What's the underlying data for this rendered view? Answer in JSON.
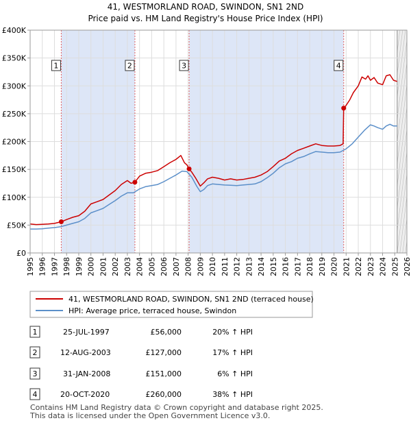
{
  "chart_data": {
    "type": "line",
    "title": "41, WESTMORLAND ROAD, SWINDON, SN1 2ND",
    "subtitle": "Price paid vs. HM Land Registry's House Price Index (HPI)",
    "xlim": [
      1995,
      2026
    ],
    "ylim": [
      0,
      400000
    ],
    "x_ticks": [
      "1995",
      "1996",
      "1997",
      "1998",
      "1999",
      "2000",
      "2001",
      "2002",
      "2003",
      "2004",
      "2005",
      "2006",
      "2007",
      "2008",
      "2009",
      "2010",
      "2011",
      "2012",
      "2013",
      "2014",
      "2015",
      "2016",
      "2017",
      "2018",
      "2019",
      "2020",
      "2021",
      "2022",
      "2023",
      "2024",
      "2025",
      "2026"
    ],
    "y_ticks": [
      {
        "value": 0,
        "label": "£0"
      },
      {
        "value": 50000,
        "label": "£50K"
      },
      {
        "value": 100000,
        "label": "£100K"
      },
      {
        "value": 150000,
        "label": "£150K"
      },
      {
        "value": 200000,
        "label": "£200K"
      },
      {
        "value": 250000,
        "label": "£250K"
      },
      {
        "value": 300000,
        "label": "£300K"
      },
      {
        "value": 350000,
        "label": "£350K"
      },
      {
        "value": 400000,
        "label": "£400K"
      }
    ],
    "grid": true,
    "series": [
      {
        "name": "41, WESTMORLAND ROAD, SWINDON, SN1 2ND (terraced house)",
        "color": "#cc0000",
        "x": [
          1995.0,
          1995.5,
          1996.0,
          1996.5,
          1997.0,
          1997.56,
          1998.0,
          1998.5,
          1999.0,
          1999.5,
          2000.0,
          2000.5,
          2001.0,
          2001.5,
          2002.0,
          2002.5,
          2003.0,
          2003.3,
          2003.62,
          2004.0,
          2004.5,
          2005.0,
          2005.5,
          2006.0,
          2006.5,
          2007.0,
          2007.4,
          2007.7,
          2007.9,
          2008.08,
          2008.3,
          2008.6,
          2009.0,
          2009.3,
          2009.6,
          2010.0,
          2010.5,
          2011.0,
          2011.5,
          2012.0,
          2012.5,
          2013.0,
          2013.5,
          2014.0,
          2014.5,
          2015.0,
          2015.5,
          2016.0,
          2016.5,
          2017.0,
          2017.5,
          2018.0,
          2018.5,
          2019.0,
          2019.5,
          2020.0,
          2020.5,
          2020.75,
          2020.8,
          2021.0,
          2021.3,
          2021.6,
          2022.0,
          2022.3,
          2022.6,
          2022.8,
          2023.0,
          2023.3,
          2023.6,
          2024.0,
          2024.3,
          2024.6,
          2024.9,
          2025.2
        ],
        "y": [
          52000,
          51000,
          51500,
          52000,
          53000,
          56000,
          60000,
          64000,
          67000,
          75000,
          88000,
          92000,
          96000,
          104000,
          112000,
          123000,
          130000,
          125000,
          127000,
          138000,
          143000,
          145000,
          148000,
          155000,
          162000,
          168000,
          175000,
          162000,
          158000,
          151000,
          145000,
          135000,
          120000,
          126000,
          133000,
          136000,
          134000,
          131000,
          133000,
          131000,
          132000,
          134000,
          136000,
          140000,
          146000,
          155000,
          165000,
          170000,
          178000,
          184000,
          188000,
          192000,
          196000,
          193000,
          192000,
          192000,
          193000,
          196000,
          260000,
          265000,
          275000,
          288000,
          300000,
          316000,
          312000,
          318000,
          310000,
          315000,
          305000,
          302000,
          318000,
          320000,
          310000,
          308000
        ]
      },
      {
        "name": "HPI: Average price, terraced house, Swindon",
        "color": "#5b8fc9",
        "x": [
          1995.0,
          1995.5,
          1996.0,
          1996.5,
          1997.0,
          1997.5,
          1998.0,
          1998.5,
          1999.0,
          1999.5,
          2000.0,
          2000.5,
          2001.0,
          2001.5,
          2002.0,
          2002.5,
          2003.0,
          2003.5,
          2004.0,
          2004.5,
          2005.0,
          2005.5,
          2006.0,
          2006.5,
          2007.0,
          2007.5,
          2007.9,
          2008.3,
          2008.7,
          2009.0,
          2009.3,
          2009.6,
          2010.0,
          2010.5,
          2011.0,
          2011.5,
          2012.0,
          2012.5,
          2013.0,
          2013.5,
          2014.0,
          2014.5,
          2015.0,
          2015.5,
          2016.0,
          2016.5,
          2017.0,
          2017.5,
          2018.0,
          2018.5,
          2019.0,
          2019.5,
          2020.0,
          2020.5,
          2021.0,
          2021.5,
          2022.0,
          2022.5,
          2023.0,
          2023.3,
          2023.6,
          2024.0,
          2024.3,
          2024.6,
          2024.9,
          2025.2
        ],
        "y": [
          43000,
          43000,
          43500,
          44500,
          45500,
          47000,
          50000,
          53000,
          56000,
          62000,
          72000,
          76000,
          80000,
          87000,
          94000,
          102000,
          108000,
          108000,
          115000,
          119000,
          121000,
          123000,
          128000,
          134000,
          140000,
          147000,
          146000,
          136000,
          120000,
          110000,
          114000,
          121000,
          124000,
          123000,
          122000,
          121500,
          121000,
          122000,
          123000,
          124000,
          128000,
          135000,
          143000,
          153000,
          160000,
          164000,
          170000,
          173000,
          178000,
          182000,
          181000,
          180000,
          180000,
          181000,
          187000,
          196000,
          208000,
          220000,
          230000,
          228000,
          225000,
          222000,
          228000,
          231000,
          228000,
          228000
        ]
      }
    ],
    "sale_markers": [
      {
        "num": "1",
        "x": 1997.56,
        "y": 56000
      },
      {
        "num": "2",
        "x": 2003.62,
        "y": 127000
      },
      {
        "num": "3",
        "x": 2008.08,
        "y": 151000
      },
      {
        "num": "4",
        "x": 2020.8,
        "y": 260000
      }
    ],
    "shaded_ranges": [
      [
        1997.56,
        2003.62
      ],
      [
        2008.08,
        2020.8
      ]
    ],
    "future_start": 2025.2,
    "colors": {
      "sale_line": "#cc0000",
      "hpi_line": "#5b8fc9",
      "shade": "#dde6f7",
      "marker_dash": "#e06060",
      "grid": "#dddddd"
    }
  },
  "legend": {
    "items": [
      {
        "label": "41, WESTMORLAND ROAD, SWINDON, SN1 2ND (terraced house)"
      },
      {
        "label": "HPI: Average price, terraced house, Swindon"
      }
    ]
  },
  "table": {
    "rows": [
      {
        "num": "1",
        "date": "25-JUL-1997",
        "price": "£56,000",
        "hpi": "20% ↑ HPI"
      },
      {
        "num": "2",
        "date": "12-AUG-2003",
        "price": "£127,000",
        "hpi": "17% ↑ HPI"
      },
      {
        "num": "3",
        "date": "31-JAN-2008",
        "price": "£151,000",
        "hpi": "6% ↑ HPI"
      },
      {
        "num": "4",
        "date": "20-OCT-2020",
        "price": "£260,000",
        "hpi": "38% ↑ HPI"
      }
    ]
  },
  "footer": {
    "line1": "Contains HM Land Registry data © Crown copyright and database right 2025.",
    "line2": "This data is licensed under the Open Government Licence v3.0."
  }
}
